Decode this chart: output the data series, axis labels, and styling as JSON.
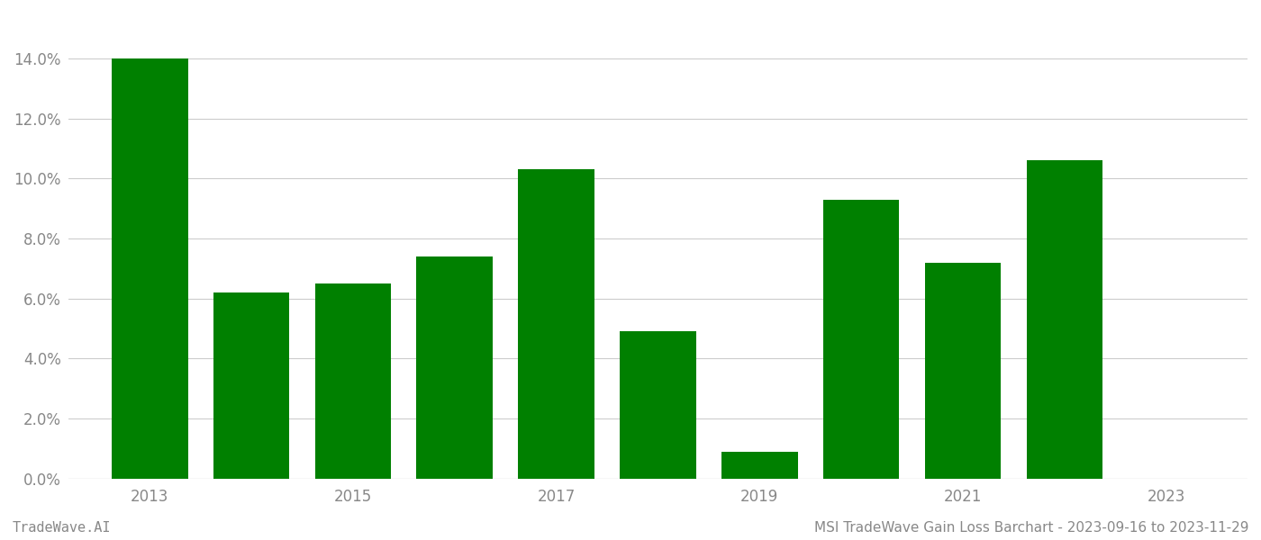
{
  "years": [
    2013,
    2014,
    2015,
    2016,
    2017,
    2018,
    2019,
    2020,
    2021,
    2022,
    2023
  ],
  "values": [
    0.14,
    0.062,
    0.065,
    0.074,
    0.103,
    0.049,
    0.009,
    0.093,
    0.072,
    0.106,
    0.0
  ],
  "bar_color": "#008000",
  "background_color": "#ffffff",
  "grid_color": "#cccccc",
  "axis_color": "#aaaaaa",
  "tick_label_color": "#888888",
  "ylim": [
    0.0,
    0.155
  ],
  "yticks": [
    0.0,
    0.02,
    0.04,
    0.06,
    0.08,
    0.1,
    0.12,
    0.14
  ],
  "xtick_years": [
    2013,
    2015,
    2017,
    2019,
    2021,
    2023
  ],
  "footer_left": "TradeWave.AI",
  "footer_right": "MSI TradeWave Gain Loss Barchart - 2023-09-16 to 2023-11-29",
  "footer_color": "#888888",
  "footer_fontsize": 11,
  "bar_width": 0.75
}
